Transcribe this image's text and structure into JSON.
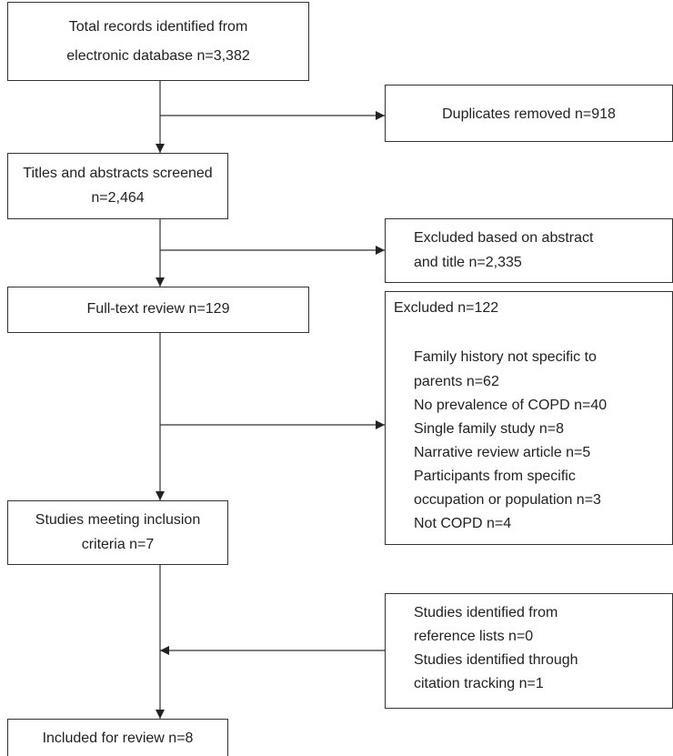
{
  "nodes": [
    {
      "lines": [
        "Total records identified from",
        "electronic database n=3,382"
      ]
    },
    {
      "lines": [
        "Duplicates removed n=918"
      ]
    },
    {
      "lines": [
        "Titles and abstracts screened",
        "n=2,464"
      ]
    },
    {
      "lines": [
        "Excluded based on abstract",
        "and title n=2,335"
      ]
    },
    {
      "lines": [
        "Full-text review n=129"
      ]
    },
    {
      "lines": [
        "Excluded n=122",
        "Family history not specific to",
        "parents n=62",
        "No prevalence of COPD n=40",
        "Single family study n=8",
        "Narrative review article n=5",
        "Participants from specific",
        "occupation or population n=3",
        "Not COPD n=4"
      ]
    },
    {
      "lines": [
        "Studies meeting inclusion",
        "criteria n=7"
      ]
    },
    {
      "lines": [
        "Studies identified from",
        "reference lists n=0",
        "Studies identified through",
        "citation tracking n=1"
      ]
    },
    {
      "lines": [
        "Included for review n=8"
      ]
    }
  ]
}
